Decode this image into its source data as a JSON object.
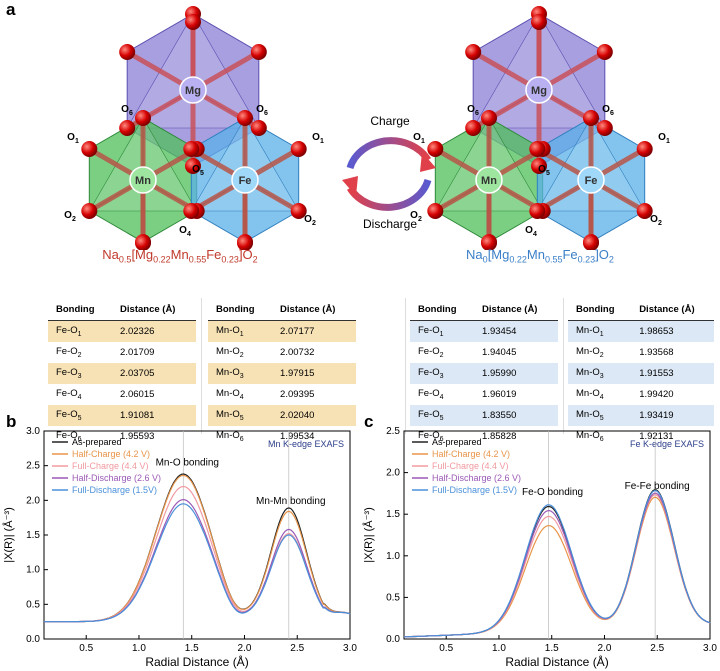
{
  "panels": {
    "a": "a",
    "b": "b",
    "c": "c"
  },
  "structure": {
    "atoms": {
      "mg": "Mg",
      "mn": "Mn",
      "fe": "Fe"
    },
    "oxygen_labels": [
      "O6",
      "O6",
      "O1",
      "O1",
      "O5",
      "O2",
      "O4",
      "O3",
      "O2",
      "O3"
    ],
    "charge_label": "Charge",
    "discharge_label": "Discharge",
    "charge_color": "#e0404a",
    "discharge_color": "#3a7fc8"
  },
  "formulas": {
    "left": {
      "na": "Na",
      "na_sub": "0.5",
      "mg_sub": "0.22",
      "mn_sub": "0.55",
      "fe_sub": "0.23",
      "color": "#c0392b"
    },
    "right": {
      "na": "Na",
      "na_sub": "0",
      "mg_sub": "0.22",
      "mn_sub": "0.55",
      "fe_sub": "0.23",
      "color": "#3a7fc8"
    }
  },
  "tables": {
    "headers": {
      "bonding": "Bonding",
      "distance": "Distance (Å)"
    },
    "left_fe": [
      [
        "Fe-O",
        "1",
        "2.02326"
      ],
      [
        "Fe-O",
        "2",
        "2.01709"
      ],
      [
        "Fe-O",
        "3",
        "2.03705"
      ],
      [
        "Fe-O",
        "4",
        "2.06015"
      ],
      [
        "Fe-O",
        "5",
        "1.91081"
      ],
      [
        "Fe-O",
        "6",
        "1.95593"
      ]
    ],
    "left_mn": [
      [
        "Mn-O",
        "1",
        "2.07177"
      ],
      [
        "Mn-O",
        "2",
        "2.00732"
      ],
      [
        "Mn-O",
        "3",
        "1.97915"
      ],
      [
        "Mn-O",
        "4",
        "2.09395"
      ],
      [
        "Mn-O",
        "5",
        "2.02040"
      ],
      [
        "Mn-O",
        "6",
        "1.99534"
      ]
    ],
    "right_fe": [
      [
        "Fe-O",
        "1",
        "1.93454"
      ],
      [
        "Fe-O",
        "2",
        "1.94045"
      ],
      [
        "Fe-O",
        "3",
        "1.95990"
      ],
      [
        "Fe-O",
        "4",
        "1.96019"
      ],
      [
        "Fe-O",
        "5",
        "1.83550"
      ],
      [
        "Fe-O",
        "6",
        "1.85828"
      ]
    ],
    "right_mn": [
      [
        "Mn-O",
        "1",
        "1.98653"
      ],
      [
        "Mn-O",
        "2",
        "1.93568"
      ],
      [
        "Mn-O",
        "3",
        "1.91553"
      ],
      [
        "Mn-O",
        "4",
        "1.99420"
      ],
      [
        "Mn-O",
        "5",
        "1.93419"
      ],
      [
        "Mn-O",
        "6",
        "1.92131"
      ]
    ]
  },
  "chart_data": [
    {
      "type": "line",
      "title": "Mn K-edge EXAFS",
      "xlabel": "Radial Distance (Å)",
      "ylabel": "|X(R)| (Å⁻³)",
      "xlim": [
        0.1,
        3.0
      ],
      "ylim": [
        0,
        3.0
      ],
      "xticks": [
        "0.5",
        "1.0",
        "1.5",
        "2.0",
        "2.5",
        "3.0"
      ],
      "yticks": [
        "0.0",
        "0.5",
        "1.0",
        "1.5",
        "2.0",
        "2.5",
        "3.0"
      ],
      "annotations": [
        {
          "text": "Mn-O bonding",
          "x": 1.42
        },
        {
          "text": "Mn-Mn bonding",
          "x": 2.42
        }
      ],
      "series": [
        {
          "name": "As-prepared",
          "color": "#222222",
          "peak1": 2.33,
          "peak2": 1.69
        },
        {
          "name": "Half-Charge (4.2 V)",
          "color": "#e8954a",
          "peak1": 2.31,
          "peak2": 1.64
        },
        {
          "name": "Full-Charge (4.4 V)",
          "color": "#f09aa0",
          "peak1": 2.15,
          "peak2": 1.32
        },
        {
          "name": "Half-Discharge (2.6 V)",
          "color": "#9b59b6",
          "peak1": 1.96,
          "peak2": 1.38
        },
        {
          "name": "Full-Discharge (1.5V)",
          "color": "#4a90d9",
          "peak1": 1.9,
          "peak2": 1.3
        }
      ]
    },
    {
      "type": "line",
      "title": "Fe K-edge EXAFS",
      "xlabel": "Radial Distance (Å)",
      "ylabel": "|X(R)| (Å⁻³)",
      "xlim": [
        0.1,
        3.0
      ],
      "ylim": [
        0,
        2.5
      ],
      "xticks": [
        "0.5",
        "1.0",
        "1.5",
        "2.0",
        "2.5",
        "3.0"
      ],
      "yticks": [
        "0.0",
        "0.5",
        "1.0",
        "1.5",
        "2.0",
        "2.5"
      ],
      "annotations": [
        {
          "text": "Fe-O bonding",
          "x": 1.47
        },
        {
          "text": "Fe-Fe bonding",
          "x": 2.48
        }
      ],
      "series": [
        {
          "name": "As-prepared",
          "color": "#222222",
          "peak1": 1.6,
          "peak2": 1.67
        },
        {
          "name": "Half-Charge (4.2 V)",
          "color": "#e8954a",
          "peak1": 1.37,
          "peak2": 1.58
        },
        {
          "name": "Full-Charge (4.4 V)",
          "color": "#f09aa0",
          "peak1": 1.48,
          "peak2": 1.61
        },
        {
          "name": "Half-Discharge (2.6 V)",
          "color": "#9b59b6",
          "peak1": 1.55,
          "peak2": 1.63
        },
        {
          "name": "Full-Discharge (1.5V)",
          "color": "#4a90d9",
          "peak1": 1.62,
          "peak2": 1.66
        }
      ]
    }
  ]
}
